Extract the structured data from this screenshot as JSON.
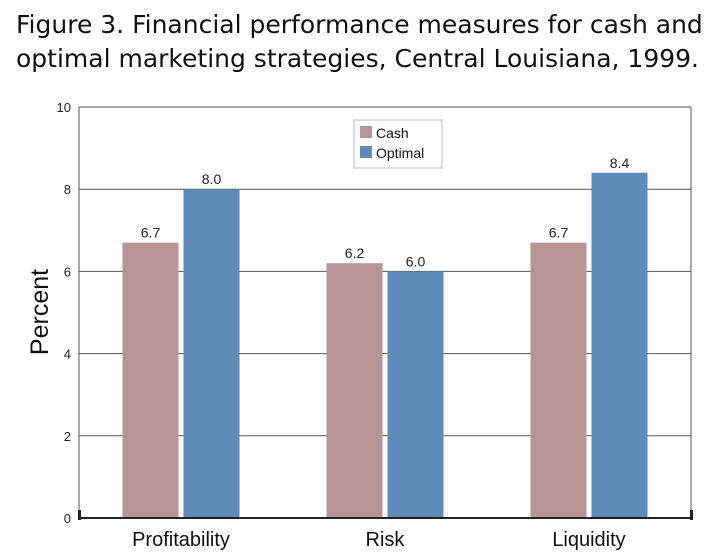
{
  "title": {
    "line1": "Figure 3. Financial performance measures for cash and",
    "line2": "optimal marketing strategies, Central Louisiana, 1999."
  },
  "chart_data": {
    "type": "bar",
    "categories": [
      "Profitability",
      "Risk",
      "Liquidity"
    ],
    "series": [
      {
        "name": "Cash",
        "values": [
          6.7,
          6.2,
          6.7
        ],
        "labels": [
          "6.7",
          "6.2",
          "6.7"
        ],
        "color": "#b89494"
      },
      {
        "name": "Optimal",
        "values": [
          8.0,
          6.0,
          8.4
        ],
        "labels": [
          "8.0",
          "6.0",
          "8.4"
        ],
        "color": "#5f8bb9"
      }
    ],
    "ylabel": "Percent",
    "ylim": [
      0,
      10
    ],
    "yticks": [
      "0",
      "2",
      "4",
      "6",
      "8",
      "10"
    ],
    "grid": true,
    "legend": "top-center"
  }
}
